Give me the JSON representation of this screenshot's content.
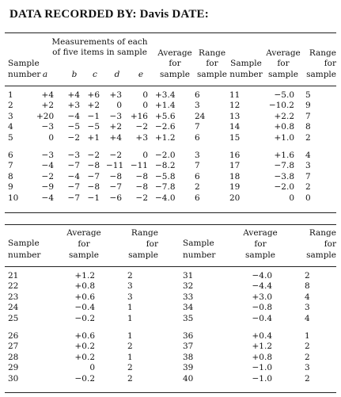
{
  "title": "DATA RECORDED BY: Davis DATE:",
  "table1": {
    "headers": {
      "measurements_line1": "Measurements of each",
      "measurements_line2": "of five items in sample",
      "sample_line1": "Sample",
      "sample_line2": "number",
      "items": [
        "a",
        "b",
        "c",
        "d",
        "e"
      ],
      "average_line1": "Average",
      "average_line2": "for",
      "average_line3": "sample",
      "range_line1": "Range",
      "range_line2": "for",
      "range_line3": "sample",
      "sample2_line1": "Sample",
      "sample2_line2": "number",
      "average2_line1": "Average",
      "average2_line2": "for",
      "average2_line3": "sample",
      "range2_line1": "Range",
      "range2_line2": "for",
      "range2_line3": "sample"
    },
    "rows": [
      {
        "n": "1",
        "a": "+4",
        "b": "+4",
        "c": "+6",
        "d": "+3",
        "e": "0",
        "avg": "+3.4",
        "rng": "6",
        "n2": "11",
        "avg2": "−5.0",
        "rng2": "5"
      },
      {
        "n": "2",
        "a": "+2",
        "b": "+3",
        "c": "+2",
        "d": "0",
        "e": "0",
        "avg": "+1.4",
        "rng": "3",
        "n2": "12",
        "avg2": "−10.2",
        "rng2": "9"
      },
      {
        "n": "3",
        "a": "+20",
        "b": "−4",
        "c": "−1",
        "d": "−3",
        "e": "+16",
        "avg": "+5.6",
        "rng": "24",
        "n2": "13",
        "avg2": "+2.2",
        "rng2": "7"
      },
      {
        "n": "4",
        "a": "−3",
        "b": "−5",
        "c": "−5",
        "d": "+2",
        "e": "−2",
        "avg": "−2.6",
        "rng": "7",
        "n2": "14",
        "avg2": "+0.8",
        "rng2": "8"
      },
      {
        "n": "5",
        "a": "0",
        "b": "−2",
        "c": "+1",
        "d": "+4",
        "e": "+3",
        "avg": "+1.2",
        "rng": "6",
        "n2": "15",
        "avg2": "+1.0",
        "rng2": "2"
      },
      {
        "n": "6",
        "a": "−3",
        "b": "−3",
        "c": "−2",
        "d": "−2",
        "e": "0",
        "avg": "−2.0",
        "rng": "3",
        "n2": "16",
        "avg2": "+1.6",
        "rng2": "4"
      },
      {
        "n": "7",
        "a": "−4",
        "b": "−7",
        "c": "−8",
        "d": "−11",
        "e": "−11",
        "avg": "−8.2",
        "rng": "7",
        "n2": "17",
        "avg2": "−7.8",
        "rng2": "3"
      },
      {
        "n": "8",
        "a": "−2",
        "b": "−4",
        "c": "−7",
        "d": "−8",
        "e": "−8",
        "avg": "−5.8",
        "rng": "6",
        "n2": "18",
        "avg2": "−3.8",
        "rng2": "7"
      },
      {
        "n": "9",
        "a": "−9",
        "b": "−7",
        "c": "−8",
        "d": "−7",
        "e": "−8",
        "avg": "−7.8",
        "rng": "2",
        "n2": "19",
        "avg2": "−2.0",
        "rng2": "2"
      },
      {
        "n": "10",
        "a": "−4",
        "b": "−7",
        "c": "−1",
        "d": "−6",
        "e": "−2",
        "avg": "−4.0",
        "rng": "6",
        "n2": "20",
        "avg2": "0",
        "rng2": "0"
      }
    ]
  },
  "table2": {
    "headers": {
      "sample_line1": "Sample",
      "sample_line2": "number",
      "average_line1": "Average",
      "average_line2": "for",
      "average_line3": "sample",
      "range_line1": "Range",
      "range_line2": "for",
      "range_line3": "sample",
      "sample2_line1": "Sample",
      "sample2_line2": "number",
      "average2_line1": "Average",
      "average2_line2": "for",
      "average2_line3": "sample",
      "range2_line1": "Range",
      "range2_line2": "for",
      "range2_line3": "sample"
    },
    "rows": [
      {
        "n": "21",
        "avg": "+1.2",
        "rng": "2",
        "n2": "31",
        "avg2": "−4.0",
        "rng2": "2"
      },
      {
        "n": "22",
        "avg": "+0.8",
        "rng": "3",
        "n2": "32",
        "avg2": "−4.4",
        "rng2": "8"
      },
      {
        "n": "23",
        "avg": "+0.6",
        "rng": "3",
        "n2": "33",
        "avg2": "+3.0",
        "rng2": "4"
      },
      {
        "n": "24",
        "avg": "−0.4",
        "rng": "1",
        "n2": "34",
        "avg2": "−0.8",
        "rng2": "3"
      },
      {
        "n": "25",
        "avg": "−0.2",
        "rng": "1",
        "n2": "35",
        "avg2": "−0.4",
        "rng2": "4"
      },
      {
        "n": "26",
        "avg": "+0.6",
        "rng": "1",
        "n2": "36",
        "avg2": "+0.4",
        "rng2": "1"
      },
      {
        "n": "27",
        "avg": "+0.2",
        "rng": "2",
        "n2": "37",
        "avg2": "+1.2",
        "rng2": "2"
      },
      {
        "n": "28",
        "avg": "+0.2",
        "rng": "1",
        "n2": "38",
        "avg2": "+0.8",
        "rng2": "2"
      },
      {
        "n": "29",
        "avg": "0",
        "rng": "2",
        "n2": "39",
        "avg2": "−1.0",
        "rng2": "3"
      },
      {
        "n": "30",
        "avg": "−0.2",
        "rng": "2",
        "n2": "40",
        "avg2": "−1.0",
        "rng2": "2"
      }
    ]
  }
}
